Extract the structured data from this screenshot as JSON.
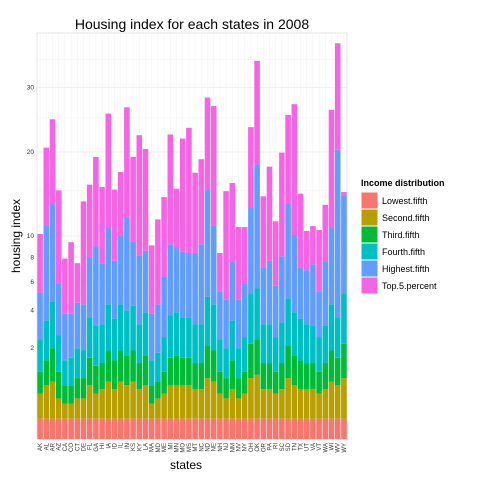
{
  "chart_data": {
    "type": "bar",
    "stacked": true,
    "title": "Housing index for each states in 2008",
    "xlabel": "states",
    "ylabel": "housing index",
    "y_scale": "sqrt",
    "ylim": [
      0,
      40
    ],
    "y_ticks": [
      2,
      4,
      6,
      8,
      10,
      20,
      30
    ],
    "grid": true,
    "legend_position": "right",
    "legend_title": "Income distribution",
    "categories": [
      "AK",
      "AL",
      "AR",
      "AZ",
      "CA",
      "CO",
      "CT",
      "DE",
      "FL",
      "GA",
      "HI",
      "IA",
      "ID",
      "IL",
      "IN",
      "KS",
      "KY",
      "LA",
      "MA",
      "MD",
      "ME",
      "MI",
      "MN",
      "MO",
      "MS",
      "MT",
      "NC",
      "ND",
      "NE",
      "NH",
      "NJ",
      "NM",
      "NV",
      "NY",
      "OH",
      "OK",
      "OR",
      "PA",
      "RI",
      "SC",
      "SD",
      "TN",
      "TX",
      "UT",
      "VA",
      "VT",
      "WA",
      "WI",
      "WV",
      "WY"
    ],
    "series": [
      {
        "name": "Lowest.fifth",
        "color": "#F8766D",
        "values": [
          0.1,
          0.1,
          0.1,
          0.1,
          0.1,
          0.1,
          0.1,
          0.1,
          0.1,
          0.1,
          0.1,
          0.1,
          0.1,
          0.1,
          0.1,
          0.1,
          0.1,
          0.1,
          0.1,
          0.1,
          0.1,
          0.1,
          0.1,
          0.1,
          0.1,
          0.1,
          0.1,
          0.1,
          0.1,
          0.1,
          0.1,
          0.1,
          0.1,
          0.1,
          0.1,
          0.1,
          0.1,
          0.1,
          0.1,
          0.1,
          0.1,
          0.1,
          0.1,
          0.1,
          0.1,
          0.1,
          0.1,
          0.1,
          0.1,
          0.1
        ]
      },
      {
        "name": "Second.fifth",
        "color": "#B79F00",
        "values": [
          0.4,
          0.6,
          0.7,
          0.3,
          0.2,
          0.2,
          0.3,
          0.3,
          0.6,
          0.4,
          0.5,
          0.7,
          0.5,
          0.7,
          0.6,
          0.7,
          0.5,
          0.6,
          0.2,
          0.3,
          0.4,
          0.6,
          0.6,
          0.6,
          0.6,
          0.5,
          0.5,
          0.8,
          0.7,
          0.4,
          0.3,
          0.5,
          0.3,
          0.4,
          0.8,
          0.9,
          0.5,
          0.5,
          0.4,
          0.5,
          0.8,
          0.6,
          0.5,
          0.5,
          0.5,
          0.4,
          0.5,
          0.7,
          0.6,
          0.8
        ]
      },
      {
        "name": "Third.fifth",
        "color": "#00BA38",
        "values": [
          0.6,
          0.8,
          1.2,
          0.7,
          0.4,
          0.4,
          0.5,
          0.5,
          0.9,
          0.8,
          0.8,
          1.1,
          0.9,
          1.1,
          1.0,
          1.1,
          0.8,
          1.0,
          0.4,
          0.4,
          0.6,
          0.9,
          1.0,
          0.9,
          0.9,
          0.8,
          0.8,
          1.2,
          1.1,
          0.6,
          0.5,
          0.9,
          0.5,
          0.6,
          1.3,
          1.4,
          0.8,
          0.8,
          0.6,
          0.8,
          1.2,
          1.0,
          0.9,
          0.8,
          0.8,
          0.6,
          0.8,
          1.1,
          0.9,
          1.3
        ]
      },
      {
        "name": "Fourth.fifth",
        "color": "#00BFC4",
        "values": [
          1.3,
          1.9,
          2.6,
          1.5,
          0.8,
          0.9,
          1.1,
          1.0,
          2.0,
          1.8,
          1.8,
          2.5,
          2.0,
          2.5,
          2.3,
          2.4,
          1.8,
          2.2,
          0.8,
          1.0,
          1.4,
          2.1,
          2.2,
          2.0,
          2.0,
          1.8,
          1.8,
          2.8,
          2.5,
          1.3,
          1.1,
          1.9,
          1.1,
          1.4,
          2.9,
          3.1,
          1.8,
          1.8,
          1.4,
          1.9,
          2.7,
          2.2,
          2.0,
          1.8,
          1.7,
          1.4,
          1.7,
          2.5,
          2.0,
          2.9
        ]
      },
      {
        "name": "Highest.fifth",
        "color": "#619CFF",
        "values": [
          2.8,
          7.7,
          8.8,
          3.3,
          2.3,
          2.2,
          2.5,
          2.5,
          4.4,
          5.9,
          4.3,
          6.5,
          4.2,
          5.6,
          7.9,
          5.2,
          5.0,
          4.7,
          2.3,
          2.6,
          3.9,
          5.5,
          5.0,
          4.9,
          4.8,
          5.2,
          6.0,
          10.2,
          6.7,
          2.9,
          2.7,
          4.2,
          2.7,
          3.4,
          7.9,
          12.8,
          3.9,
          4.5,
          3.2,
          4.8,
          8.7,
          6.2,
          3.6,
          3.7,
          4.3,
          2.8,
          4.5,
          6.4,
          16.7,
          9.3
        ]
      },
      {
        "name": "Top.5.percent",
        "color": "#F564E3",
        "values": [
          5.0,
          9.5,
          11.4,
          9.1,
          4.1,
          5.6,
          3.0,
          9.3,
          7.7,
          10.3,
          7.9,
          14.8,
          7.4,
          7.3,
          14.8,
          9.8,
          14.2,
          11.8,
          5.3,
          7.3,
          7.8,
          13.3,
          6.3,
          13.4,
          15.1,
          8.8,
          9.8,
          13.2,
          15.8,
          3.1,
          10.2,
          8.3,
          6.2,
          5.0,
          10.6,
          16.4,
          7.2,
          10.3,
          5.8,
          11.8,
          12.0,
          17.1,
          7.5,
          3.6,
          3.6,
          5.3,
          5.7,
          15.5,
          17.7,
          0.4
        ]
      }
    ]
  }
}
